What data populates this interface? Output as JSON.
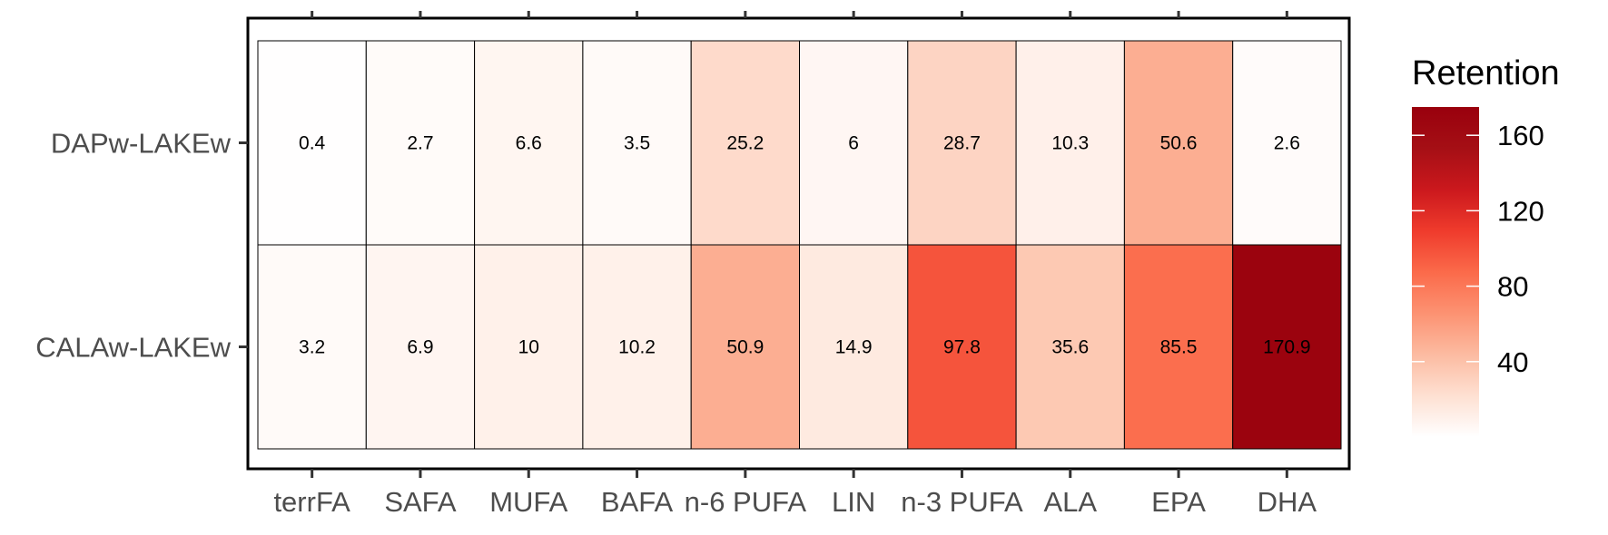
{
  "chart_data": {
    "type": "heatmap",
    "title": "",
    "xlabel": "",
    "ylabel": "",
    "x_categories": [
      "terrFA",
      "SAFA",
      "MUFA",
      "BAFA",
      "n-6 PUFA",
      "LIN",
      "n-3 PUFA",
      "ALA",
      "EPA",
      "DHA"
    ],
    "y_categories": [
      "DAPw-LAKEw",
      "CALAw-LAKEw"
    ],
    "values": [
      [
        0.4,
        2.7,
        6.6,
        3.5,
        25.2,
        6,
        28.7,
        10.3,
        50.6,
        2.6
      ],
      [
        3.2,
        6.9,
        10,
        10.2,
        50.9,
        14.9,
        97.8,
        35.6,
        85.5,
        170.9
      ]
    ],
    "labels": [
      [
        "0.4",
        "2.7",
        "6.6",
        "3.5",
        "25.2",
        "6",
        "28.7",
        "10.3",
        "50.6",
        "2.6"
      ],
      [
        "3.2",
        "6.9",
        "10",
        "10.2",
        "50.9",
        "14.9",
        "97.8",
        "35.6",
        "85.5",
        "170.9"
      ]
    ],
    "legend": {
      "title": "Retention",
      "position": "right",
      "range": [
        0,
        175
      ],
      "ticks": [
        40,
        80,
        120,
        160
      ],
      "tick_labels": [
        "40",
        "80",
        "120",
        "160"
      ],
      "color_low": "#ffffff",
      "color_high": "#99000d"
    },
    "grid": false,
    "cell_border_color": "#000000",
    "panel_border_color": "#000000"
  }
}
